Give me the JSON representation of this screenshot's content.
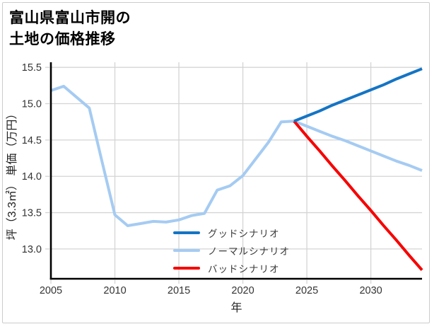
{
  "title": {
    "line1": "富山県富山市開の",
    "line2": "土地の価格推移"
  },
  "frame": {
    "border_color": "#cccccc"
  },
  "chart_data": {
    "type": "line",
    "title": "富山県富山市開の土地の価格推移",
    "xlabel": "年",
    "ylabel": "坪（3.3㎡） 単価（万円）",
    "xlim": [
      2005,
      2034
    ],
    "ylim": [
      12.59,
      15.57
    ],
    "x_ticks": [
      2005,
      2010,
      2015,
      2020,
      2025,
      2030
    ],
    "y_ticks": [
      "13.0",
      "13.5",
      "14.0",
      "14.5",
      "15.0",
      "15.5"
    ],
    "grid": true,
    "grid_color": "#d4d4d4",
    "spine_color": "#000000",
    "legend_position": "inside lower-center-left, no box",
    "series": [
      {
        "name": "グッドシナリオ",
        "color": "#1474c4",
        "x": [
          2024,
          2025,
          2026,
          2027,
          2028,
          2029,
          2030,
          2031,
          2032,
          2033,
          2034
        ],
        "values": [
          14.76,
          14.83,
          14.9,
          14.98,
          15.05,
          15.12,
          15.19,
          15.26,
          15.34,
          15.41,
          15.48
        ]
      },
      {
        "name": "ノーマルシナリオ",
        "color": "#a5cbf2",
        "x": [
          2005,
          2006,
          2007,
          2008,
          2009,
          2010,
          2011,
          2012,
          2013,
          2014,
          2015,
          2016,
          2017,
          2018,
          2019,
          2020,
          2021,
          2022,
          2023,
          2024,
          2025,
          2026,
          2027,
          2028,
          2029,
          2030,
          2031,
          2032,
          2033,
          2034
        ],
        "values": [
          15.18,
          15.24,
          15.09,
          14.94,
          14.2,
          13.47,
          13.32,
          13.35,
          13.38,
          13.37,
          13.4,
          13.46,
          13.49,
          13.81,
          13.87,
          14.01,
          14.24,
          14.47,
          14.75,
          14.76,
          14.69,
          14.62,
          14.55,
          14.49,
          14.42,
          14.35,
          14.28,
          14.21,
          14.15,
          14.08
        ]
      },
      {
        "name": "バッドシナリオ",
        "color": "#f60000",
        "x": [
          2024,
          2025,
          2026,
          2027,
          2028,
          2029,
          2030,
          2031,
          2032,
          2033,
          2034
        ],
        "values": [
          14.76,
          14.55,
          14.35,
          14.14,
          13.94,
          13.73,
          13.53,
          13.32,
          13.12,
          12.91,
          12.71
        ]
      }
    ]
  }
}
